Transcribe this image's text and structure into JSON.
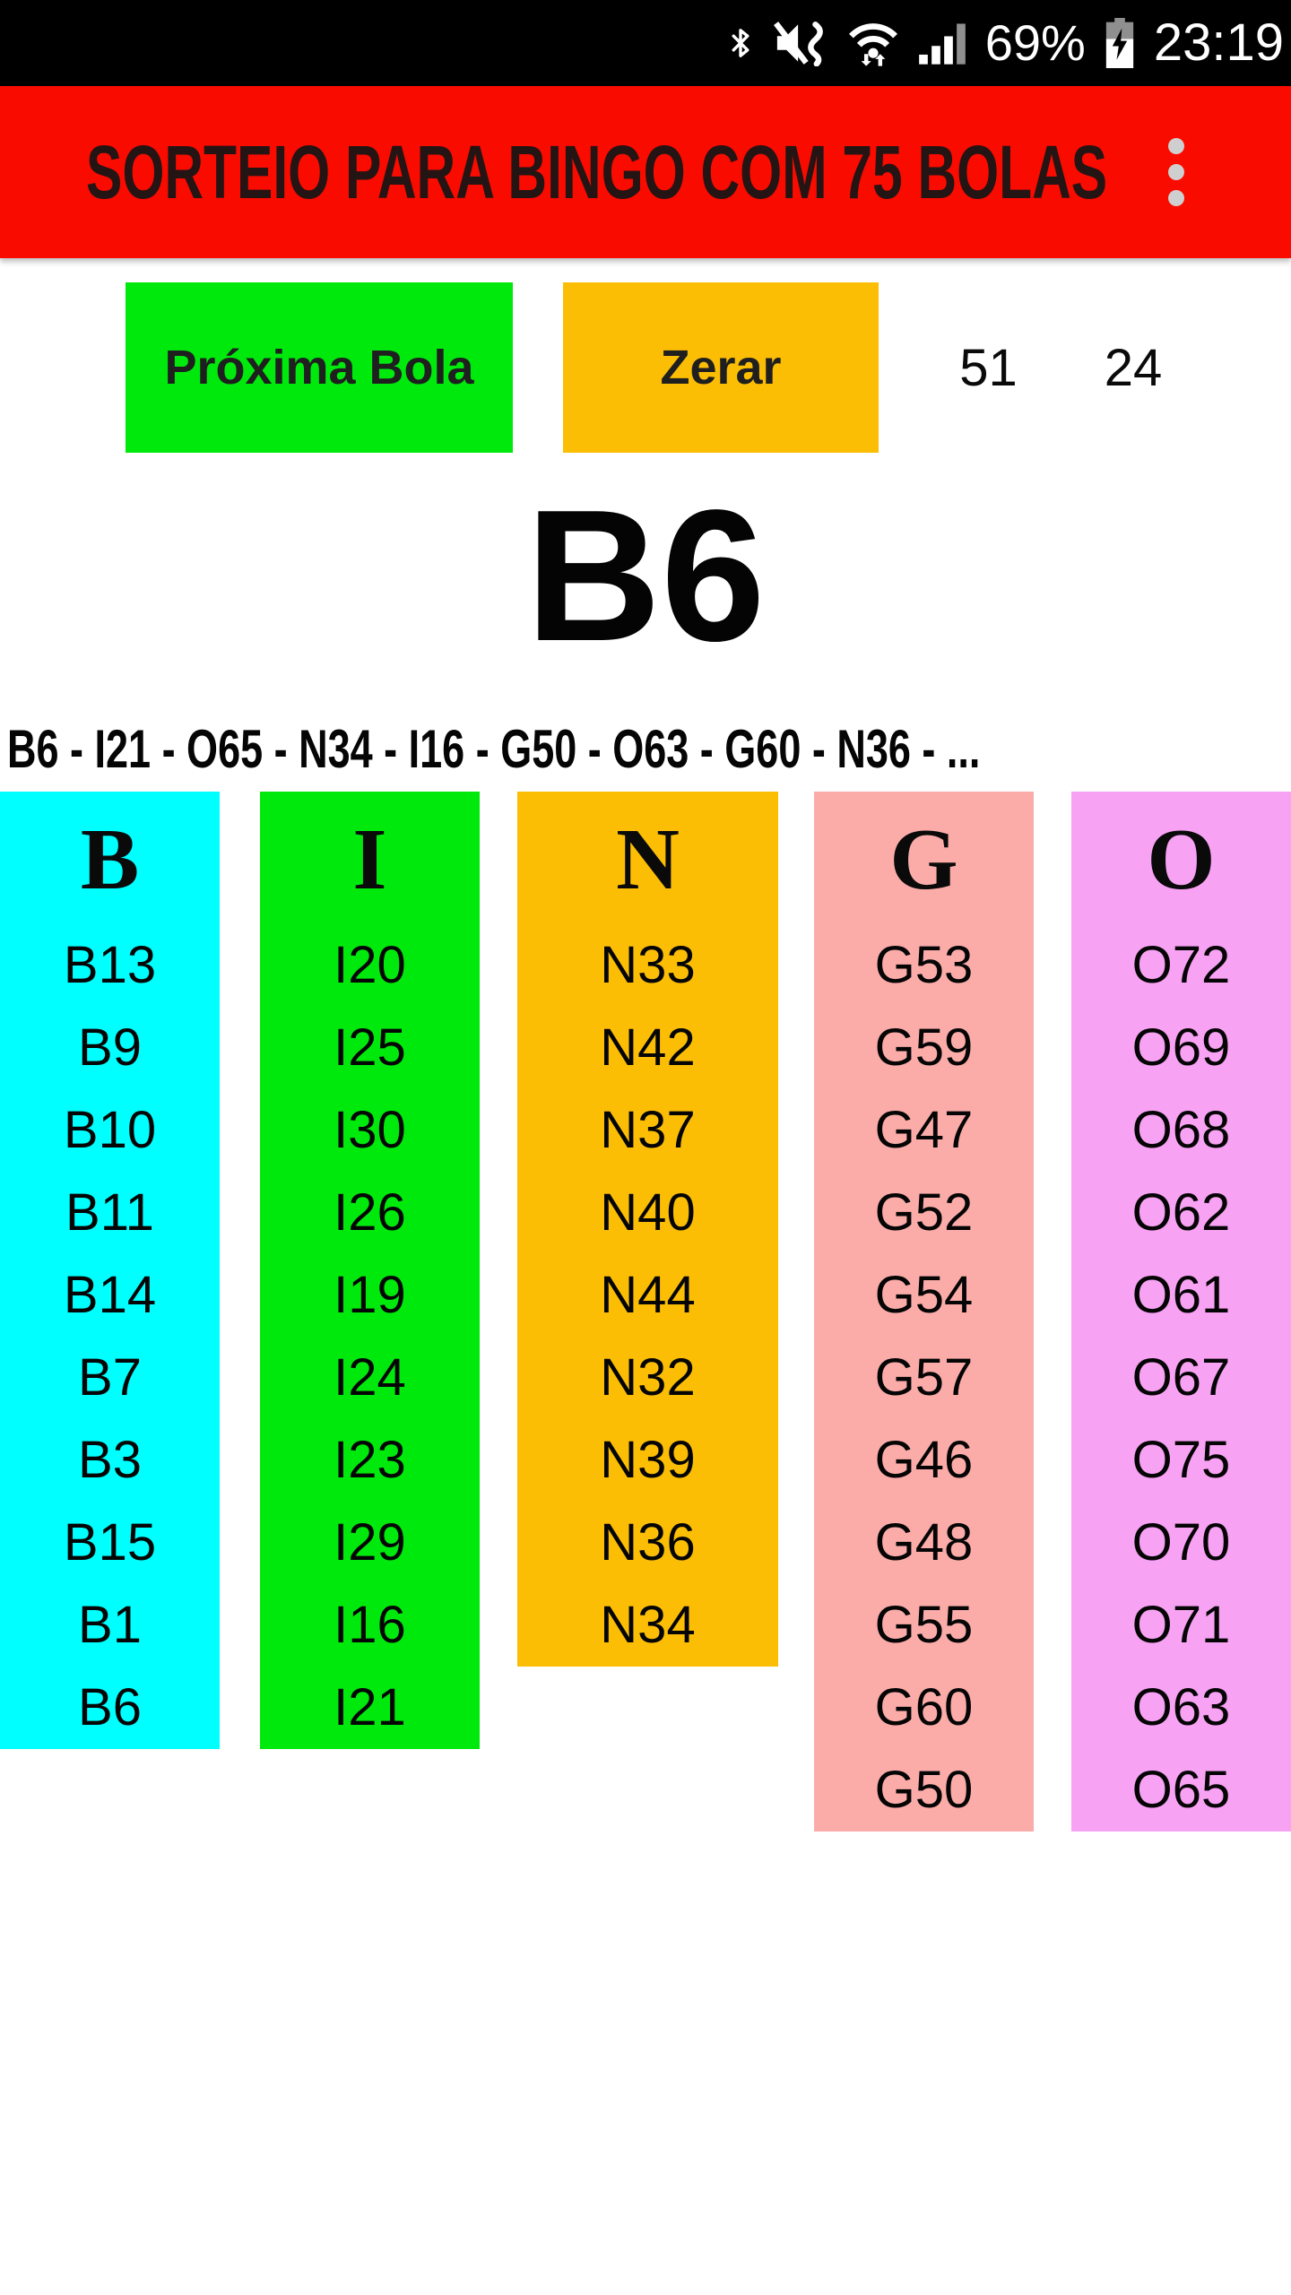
{
  "status_bar": {
    "time": "23:19",
    "battery_percent": "69%",
    "icons": [
      "bluetooth-icon",
      "vibrate-mute-icon",
      "wifi-data-icon",
      "cell-signal-icon",
      "battery-charging-icon"
    ],
    "bg_color": "#000000"
  },
  "app_bar": {
    "title": "SORTEIO PARA BINGO COM 75 BOLAS",
    "bg_color": "#F90B00",
    "title_color": "#241414",
    "menu_icon": "overflow-menu-icon",
    "menu_dot_color": "#CFCFCF"
  },
  "controls": {
    "next_ball_label": "Próxima Bola",
    "next_ball_color": "#00E90C",
    "reset_label": "Zerar",
    "reset_color": "#FCBE05",
    "drawn_count": "51",
    "remaining_count": "24"
  },
  "current_ball": "B6",
  "history": "B6 - I21 - O65 - N34 - I16 - G50 - O63 - G60 - N36 - ...",
  "board": {
    "columns": [
      {
        "letter": "B",
        "color": "#00FFFF",
        "balls": [
          "B13",
          "B9",
          "B10",
          "B11",
          "B14",
          "B7",
          "B3",
          "B15",
          "B1",
          "B6"
        ]
      },
      {
        "letter": "I",
        "color": "#00E90C",
        "balls": [
          "I20",
          "I25",
          "I30",
          "I26",
          "I19",
          "I24",
          "I23",
          "I29",
          "I16",
          "I21"
        ]
      },
      {
        "letter": "N",
        "color": "#FCBE05",
        "balls": [
          "N33",
          "N42",
          "N37",
          "N40",
          "N44",
          "N32",
          "N39",
          "N36",
          "N34"
        ]
      },
      {
        "letter": "G",
        "color": "#FBACA9",
        "balls": [
          "G53",
          "G59",
          "G47",
          "G52",
          "G54",
          "G57",
          "G46",
          "G48",
          "G55",
          "G60",
          "G50"
        ]
      },
      {
        "letter": "O",
        "color": "#F8A2F4",
        "balls": [
          "O72",
          "O69",
          "O68",
          "O62",
          "O61",
          "O67",
          "O75",
          "O70",
          "O71",
          "O63",
          "O65"
        ]
      }
    ]
  }
}
